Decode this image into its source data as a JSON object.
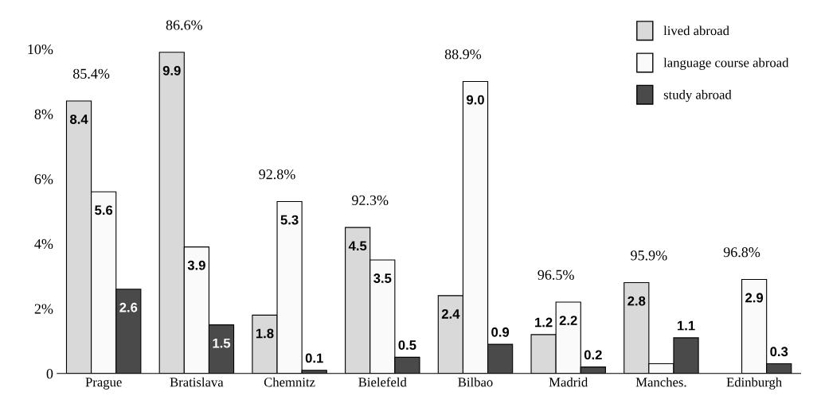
{
  "chart_data": {
    "type": "bar",
    "categories": [
      "Prague",
      "Bratislava",
      "Chemnitz",
      "Bielefeld",
      "Bilbao",
      "Madrid",
      "Manches.",
      "Edinburgh"
    ],
    "series": [
      {
        "name": "lived abroad",
        "color": "#d9d9d9",
        "values": [
          8.4,
          9.9,
          1.8,
          4.5,
          2.4,
          1.2,
          2.8,
          null
        ],
        "value_labels": [
          "8.4",
          "9.9",
          "1.8",
          "4.5",
          "2.4",
          "1.2",
          "2.8",
          null
        ]
      },
      {
        "name": "language course abroad",
        "color": "#fafafa",
        "values": [
          5.6,
          3.9,
          5.3,
          3.5,
          9.0,
          2.2,
          0.3,
          2.9
        ],
        "value_labels": [
          "5.6",
          "3.9",
          "5.3",
          "3.5",
          "9.0",
          "2.2",
          null,
          "2.9"
        ]
      },
      {
        "name": "study abroad",
        "color": "#4a4a4a",
        "values": [
          2.6,
          1.5,
          0.1,
          0.5,
          0.9,
          0.2,
          1.1,
          0.3
        ],
        "value_labels": [
          "2.6",
          "1.5",
          "0.1",
          "0.5",
          "0.9",
          "0.2",
          "1.1",
          "0.3"
        ]
      }
    ],
    "ylim": [
      0,
      11
    ],
    "yticks": [
      {
        "value": 0,
        "label": "0"
      },
      {
        "value": 2,
        "label": "2%"
      },
      {
        "value": 4,
        "label": "4%"
      },
      {
        "value": 6,
        "label": "6%"
      },
      {
        "value": 8,
        "label": "8%"
      },
      {
        "value": 10,
        "label": "10%"
      }
    ],
    "annotations": [
      "85.4%",
      "86.6%",
      "92.8%",
      "92.3%",
      "88.9%",
      "96.5%",
      "95.9%",
      "96.8%"
    ],
    "legend": "top right",
    "grid": false
  }
}
